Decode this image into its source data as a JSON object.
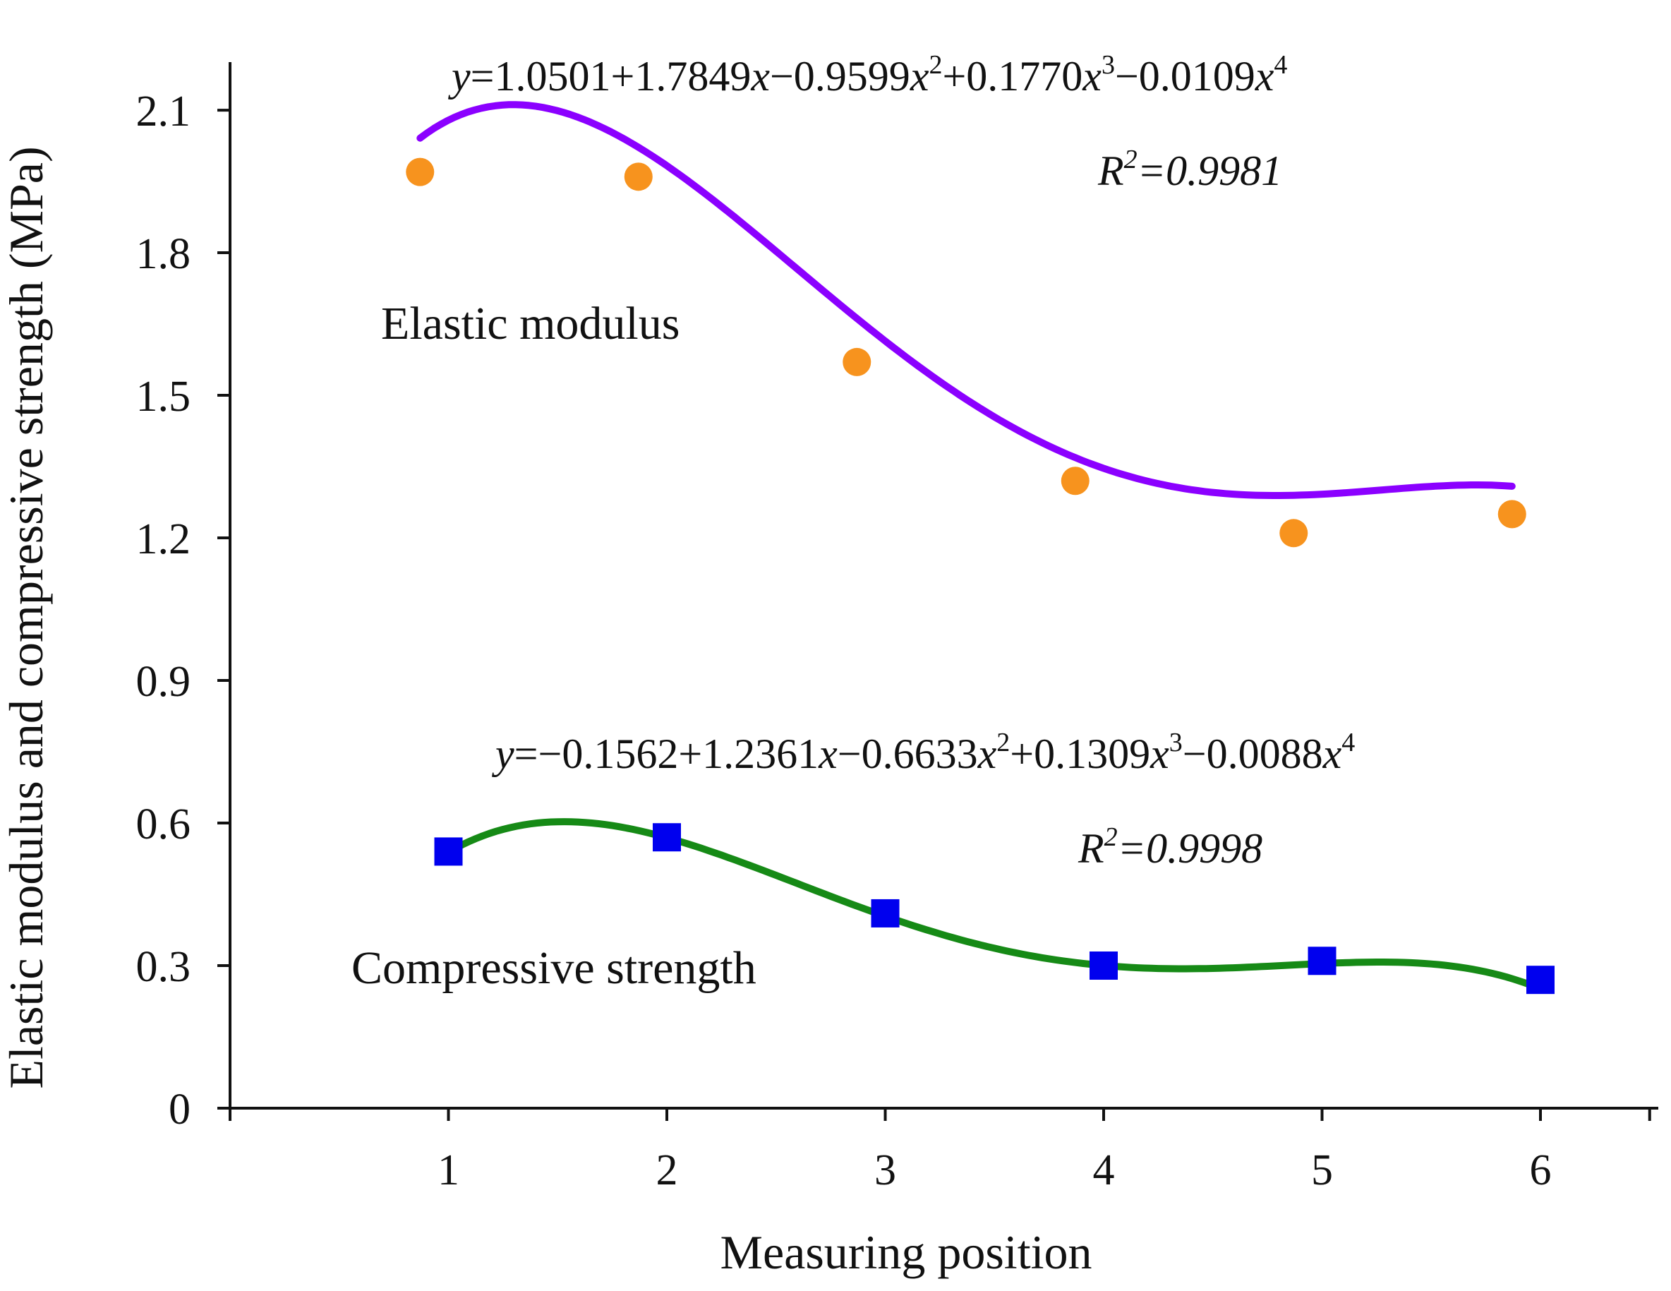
{
  "chart_data": {
    "type": "scatter",
    "title": "",
    "xlabel": "Measuring position",
    "ylabel": "Elastic modulus and compressive strength (MPa)",
    "x_ticks": [
      "1",
      "2",
      "3",
      "4",
      "5",
      "6"
    ],
    "y_ticks": [
      "0",
      "0.3",
      "0.6",
      "0.9",
      "1.2",
      "1.5",
      "1.8",
      "2.1"
    ],
    "xlim": [
      0,
      6.5
    ],
    "ylim": [
      0,
      2.2
    ],
    "grid": false,
    "series": [
      {
        "name": "Elastic modulus",
        "marker": "circle",
        "marker_color": "#F7931E",
        "line_color": "#8B00FF",
        "points": [
          {
            "x": 0.87,
            "y": 1.97
          },
          {
            "x": 1.87,
            "y": 1.96
          },
          {
            "x": 2.87,
            "y": 1.57
          },
          {
            "x": 3.87,
            "y": 1.32
          },
          {
            "x": 4.87,
            "y": 1.21
          },
          {
            "x": 5.87,
            "y": 1.25
          }
        ],
        "fit": {
          "coefficients": [
            1.0501,
            1.7849,
            -0.9599,
            0.177,
            -0.0109
          ],
          "equation": {
            "y": "y",
            "eq": "=1.0501+1.7849",
            "x1": "x",
            "t2": "−0.9599",
            "x2": "x",
            "p2": "2",
            "t3": "+0.1770",
            "x3": "x",
            "p3": "3",
            "t4": "−0.0109",
            "x4": "x",
            "p4": "4"
          },
          "r2": {
            "r": "R",
            "p": "2",
            "value": "=0.9981"
          }
        }
      },
      {
        "name": "Compressive strength",
        "marker": "square",
        "marker_color": "#0000EE",
        "line_color": "#168A16",
        "points": [
          {
            "x": 1,
            "y": 0.54
          },
          {
            "x": 2,
            "y": 0.57
          },
          {
            "x": 3,
            "y": 0.41
          },
          {
            "x": 4,
            "y": 0.3
          },
          {
            "x": 5,
            "y": 0.31
          },
          {
            "x": 6,
            "y": 0.27
          }
        ],
        "fit": {
          "coefficients": [
            -0.1562,
            1.2361,
            -0.6633,
            0.1309,
            -0.0088
          ],
          "equation": {
            "y": "y",
            "eq": "=−0.1562+1.2361",
            "x1": "x",
            "t2": "−0.6633",
            "x2": "x",
            "p2": "2",
            "t3": "+0.1309",
            "x3": "x",
            "p3": "3",
            "t4": "−0.0088",
            "x4": "x",
            "p4": "4"
          },
          "r2": {
            "r": "R",
            "p": "2",
            "value": "=0.9998"
          }
        }
      }
    ]
  }
}
